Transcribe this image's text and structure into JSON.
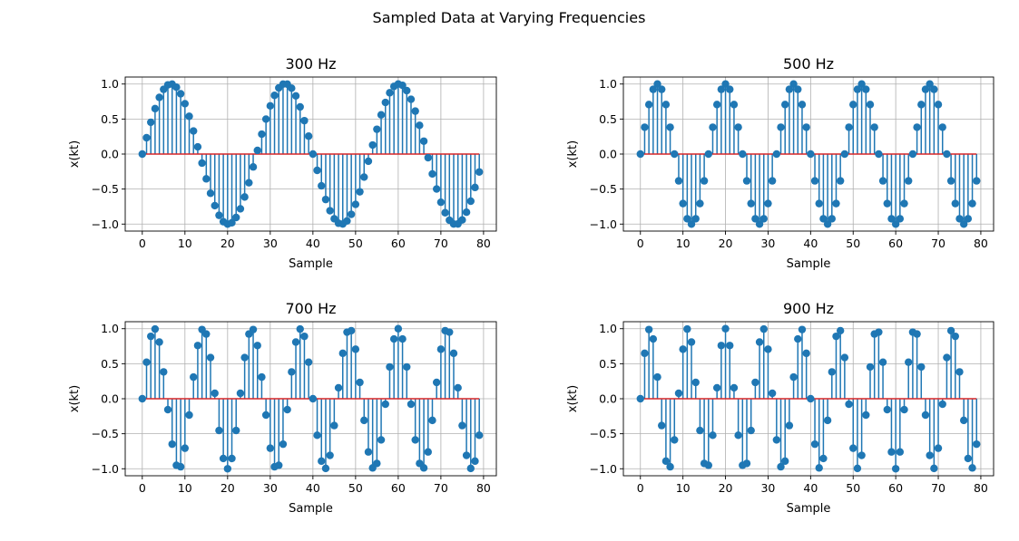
{
  "figure": {
    "title": "Sampled Data at Varying Frequencies"
  },
  "colors": {
    "stem": "#1f77b4",
    "baseline": "#d62728",
    "grid": "#b0b0b0",
    "axes": "#000000"
  },
  "chart_data": [
    {
      "type": "stem",
      "title": "300 Hz",
      "frequency_hz": 300,
      "xlabel": "Sample",
      "ylabel": "x(kt)",
      "xlim": [
        -4,
        83
      ],
      "ylim": [
        -1.1,
        1.1
      ],
      "xticks": [
        0,
        10,
        20,
        30,
        40,
        50,
        60,
        70,
        80
      ],
      "yticks": [
        1.0,
        0.5,
        0.0,
        -0.5,
        -1.0
      ],
      "ytick_labels": [
        "1.0",
        "0.5",
        "0.0",
        "−0.5",
        "−1.0"
      ],
      "grid": true,
      "x": [
        0,
        1,
        2,
        3,
        4,
        5,
        6,
        7,
        8,
        9,
        10,
        11,
        12,
        13,
        14,
        15,
        16,
        17,
        18,
        19,
        20,
        21,
        22,
        23,
        24,
        25,
        26,
        27,
        28,
        29,
        30,
        31,
        32,
        33,
        34,
        35,
        36,
        37,
        38,
        39,
        40,
        41,
        42,
        43,
        44,
        45,
        46,
        47,
        48,
        49,
        50,
        51,
        52,
        53,
        54,
        55,
        56,
        57,
        58,
        59,
        60,
        61,
        62,
        63,
        64,
        65,
        66,
        67,
        68,
        69,
        70,
        71,
        72,
        73,
        74,
        75,
        76,
        77,
        78,
        79
      ],
      "values": [
        0.0,
        0.233,
        0.454,
        0.649,
        0.809,
        0.924,
        0.988,
        0.999,
        0.955,
        0.861,
        0.719,
        0.539,
        0.329,
        0.103,
        -0.129,
        -0.354,
        -0.56,
        -0.737,
        -0.875,
        -0.966,
        -1.0,
        -0.981,
        -0.906,
        -0.782,
        -0.613,
        -0.41,
        -0.184,
        0.052,
        0.284,
        0.499,
        0.688,
        0.838,
        0.945,
        0.999,
        0.998,
        0.941,
        0.831,
        0.673,
        0.477,
        0.256,
        0.0,
        -0.233,
        -0.454,
        -0.649,
        -0.809,
        -0.924,
        -0.988,
        -0.999,
        -0.955,
        -0.861,
        -0.719,
        -0.539,
        -0.329,
        -0.103,
        0.129,
        0.354,
        0.56,
        0.737,
        0.875,
        0.966,
        1.0,
        0.981,
        0.906,
        0.782,
        0.613,
        0.41,
        0.184,
        -0.052,
        -0.284,
        -0.499,
        -0.688,
        -0.838,
        -0.945,
        -0.999,
        -0.998,
        -0.941,
        -0.831,
        -0.673,
        -0.477,
        -0.256
      ]
    },
    {
      "type": "stem",
      "title": "500 Hz",
      "frequency_hz": 500,
      "xlabel": "Sample",
      "ylabel": "x(kt)",
      "xlim": [
        -4,
        83
      ],
      "ylim": [
        -1.1,
        1.1
      ],
      "xticks": [
        0,
        10,
        20,
        30,
        40,
        50,
        60,
        70,
        80
      ],
      "yticks": [
        1.0,
        0.5,
        0.0,
        -0.5,
        -1.0
      ],
      "ytick_labels": [
        "1.0",
        "0.5",
        "0.0",
        "−0.5",
        "−1.0"
      ],
      "grid": true,
      "x": [
        0,
        1,
        2,
        3,
        4,
        5,
        6,
        7,
        8,
        9,
        10,
        11,
        12,
        13,
        14,
        15,
        16,
        17,
        18,
        19,
        20,
        21,
        22,
        23,
        24,
        25,
        26,
        27,
        28,
        29,
        30,
        31,
        32,
        33,
        34,
        35,
        36,
        37,
        38,
        39,
        40,
        41,
        42,
        43,
        44,
        45,
        46,
        47,
        48,
        49,
        50,
        51,
        52,
        53,
        54,
        55,
        56,
        57,
        58,
        59,
        60,
        61,
        62,
        63,
        64,
        65,
        66,
        67,
        68,
        69,
        70,
        71,
        72,
        73,
        74,
        75,
        76,
        77,
        78,
        79
      ],
      "values": [
        0.0,
        0.383,
        0.707,
        0.924,
        1.0,
        0.924,
        0.707,
        0.383,
        0.0,
        -0.383,
        -0.707,
        -0.924,
        -1.0,
        -0.924,
        -0.707,
        -0.383,
        0.0,
        0.383,
        0.707,
        0.924,
        1.0,
        0.924,
        0.707,
        0.383,
        0.0,
        -0.383,
        -0.707,
        -0.924,
        -1.0,
        -0.924,
        -0.707,
        -0.383,
        0.0,
        0.383,
        0.707,
        0.924,
        1.0,
        0.924,
        0.707,
        0.383,
        0.0,
        -0.383,
        -0.707,
        -0.924,
        -1.0,
        -0.924,
        -0.707,
        -0.383,
        0.0,
        0.383,
        0.707,
        0.924,
        1.0,
        0.924,
        0.707,
        0.383,
        0.0,
        -0.383,
        -0.707,
        -0.924,
        -1.0,
        -0.924,
        -0.707,
        -0.383,
        0.0,
        0.383,
        0.707,
        0.924,
        1.0,
        0.924,
        0.707,
        0.383,
        0.0,
        -0.383,
        -0.707,
        -0.924,
        -1.0,
        -0.924,
        -0.707,
        -0.383
      ]
    },
    {
      "type": "stem",
      "title": "700 Hz",
      "frequency_hz": 700,
      "xlabel": "Sample",
      "ylabel": "x(kt)",
      "xlim": [
        -4,
        83
      ],
      "ylim": [
        -1.1,
        1.1
      ],
      "xticks": [
        0,
        10,
        20,
        30,
        40,
        50,
        60,
        70,
        80
      ],
      "yticks": [
        1.0,
        0.5,
        0.0,
        -0.5,
        -1.0
      ],
      "ytick_labels": [
        "1.0",
        "0.5",
        "0.0",
        "−0.5",
        "−1.0"
      ],
      "grid": true,
      "x": [
        0,
        1,
        2,
        3,
        4,
        5,
        6,
        7,
        8,
        9,
        10,
        11,
        12,
        13,
        14,
        15,
        16,
        17,
        18,
        19,
        20,
        21,
        22,
        23,
        24,
        25,
        26,
        27,
        28,
        29,
        30,
        31,
        32,
        33,
        34,
        35,
        36,
        37,
        38,
        39,
        40,
        41,
        42,
        43,
        44,
        45,
        46,
        47,
        48,
        49,
        50,
        51,
        52,
        53,
        54,
        55,
        56,
        57,
        58,
        59,
        60,
        61,
        62,
        63,
        64,
        65,
        66,
        67,
        68,
        69,
        70,
        71,
        72,
        73,
        74,
        75,
        76,
        77,
        78,
        79
      ],
      "values": [
        0.0,
        0.522,
        0.891,
        0.995,
        0.809,
        0.383,
        -0.156,
        -0.649,
        -0.951,
        -0.972,
        -0.707,
        -0.233,
        0.309,
        0.76,
        0.988,
        0.924,
        0.588,
        0.078,
        -0.454,
        -0.853,
        -1.0,
        -0.853,
        -0.454,
        0.078,
        0.588,
        0.924,
        0.988,
        0.76,
        0.309,
        -0.233,
        -0.707,
        -0.972,
        -0.951,
        -0.649,
        -0.156,
        0.383,
        0.809,
        0.995,
        0.891,
        0.522,
        0.0,
        -0.522,
        -0.891,
        -0.995,
        -0.809,
        -0.383,
        0.156,
        0.649,
        0.951,
        0.972,
        0.707,
        0.233,
        -0.309,
        -0.76,
        -0.988,
        -0.924,
        -0.588,
        -0.078,
        0.454,
        0.853,
        1.0,
        0.853,
        0.454,
        -0.078,
        -0.588,
        -0.924,
        -0.988,
        -0.76,
        -0.309,
        0.233,
        0.707,
        0.972,
        0.951,
        0.649,
        0.156,
        -0.383,
        -0.809,
        -0.995,
        -0.891,
        -0.522
      ]
    },
    {
      "type": "stem",
      "title": "900 Hz",
      "frequency_hz": 900,
      "xlabel": "Sample",
      "ylabel": "x(kt)",
      "xlim": [
        -4,
        83
      ],
      "ylim": [
        -1.1,
        1.1
      ],
      "xticks": [
        0,
        10,
        20,
        30,
        40,
        50,
        60,
        70,
        80
      ],
      "yticks": [
        1.0,
        0.5,
        0.0,
        -0.5,
        -1.0
      ],
      "ytick_labels": [
        "1.0",
        "0.5",
        "0.0",
        "−0.5",
        "−1.0"
      ],
      "grid": true,
      "x": [
        0,
        1,
        2,
        3,
        4,
        5,
        6,
        7,
        8,
        9,
        10,
        11,
        12,
        13,
        14,
        15,
        16,
        17,
        18,
        19,
        20,
        21,
        22,
        23,
        24,
        25,
        26,
        27,
        28,
        29,
        30,
        31,
        32,
        33,
        34,
        35,
        36,
        37,
        38,
        39,
        40,
        41,
        42,
        43,
        44,
        45,
        46,
        47,
        48,
        49,
        50,
        51,
        52,
        53,
        54,
        55,
        56,
        57,
        58,
        59,
        60,
        61,
        62,
        63,
        64,
        65,
        66,
        67,
        68,
        69,
        70,
        71,
        72,
        73,
        74,
        75,
        76,
        77,
        78,
        79
      ],
      "values": [
        0.0,
        0.649,
        0.988,
        0.853,
        0.309,
        -0.383,
        -0.891,
        -0.972,
        -0.588,
        0.078,
        0.707,
        0.995,
        0.809,
        0.233,
        -0.454,
        -0.924,
        -0.951,
        -0.522,
        0.156,
        0.76,
        1.0,
        0.76,
        0.156,
        -0.522,
        -0.951,
        -0.924,
        -0.454,
        0.233,
        0.809,
        0.995,
        0.707,
        0.078,
        -0.588,
        -0.972,
        -0.891,
        -0.383,
        0.309,
        0.853,
        0.988,
        0.649,
        0.0,
        -0.649,
        -0.988,
        -0.853,
        -0.309,
        0.383,
        0.891,
        0.972,
        0.588,
        -0.078,
        -0.707,
        -0.995,
        -0.809,
        -0.233,
        0.454,
        0.924,
        0.951,
        0.522,
        -0.156,
        -0.76,
        -1.0,
        -0.76,
        -0.156,
        0.522,
        0.951,
        0.924,
        0.454,
        -0.233,
        -0.809,
        -0.995,
        -0.707,
        -0.078,
        0.588,
        0.972,
        0.891,
        0.383,
        -0.309,
        -0.853,
        -0.988,
        -0.649
      ]
    }
  ]
}
